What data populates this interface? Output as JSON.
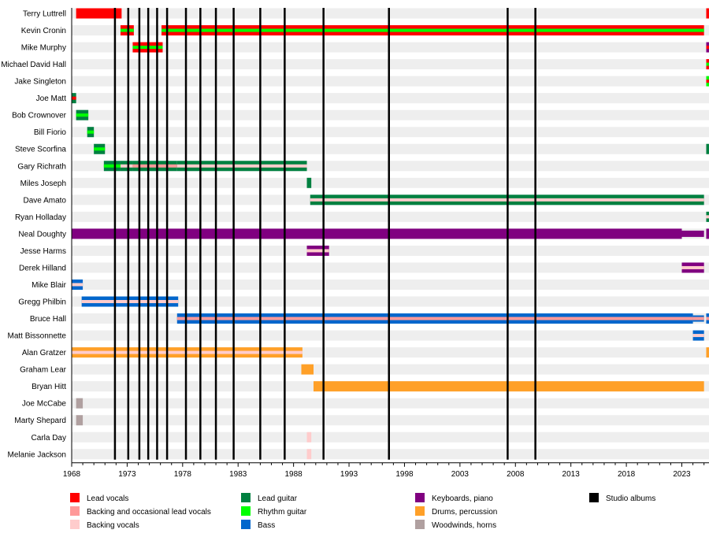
{
  "chart_data": {
    "type": "timeline",
    "xlim": [
      1968,
      2025.45
    ],
    "x_ticks": [
      1968,
      1973,
      1978,
      1983,
      1988,
      1993,
      1998,
      2003,
      2008,
      2013,
      2018,
      2023
    ],
    "grid": false,
    "legend_position": "bottom",
    "roles": {
      "lead_vocals": {
        "label": "Lead vocals",
        "color": "#ff0000"
      },
      "backing_lead_vocals": {
        "label": "Backing and occasional lead vocals",
        "color": "#ff9999"
      },
      "backing_vocals": {
        "label": "Backing vocals",
        "color": "#ffcccc"
      },
      "lead_guitar": {
        "label": "Lead guitar",
        "color": "#008040"
      },
      "rhythm_guitar": {
        "label": "Rhythm guitar",
        "color": "#00ff00"
      },
      "bass": {
        "label": "Bass",
        "color": "#0066cc"
      },
      "keyboards": {
        "label": "Keyboards, piano",
        "color": "#800080"
      },
      "drums": {
        "label": "Drums, percussion",
        "color": "#ffa028"
      },
      "woodwinds": {
        "label": "Woodwinds, horns",
        "color": "#b0a0a0"
      },
      "studio_albums": {
        "label": "Studio albums",
        "color": "#000000"
      }
    },
    "legend_order": [
      [
        "lead_vocals",
        "backing_lead_vocals",
        "backing_vocals"
      ],
      [
        "lead_guitar",
        "rhythm_guitar",
        "bass"
      ],
      [
        "keyboards",
        "drums",
        "woodwinds"
      ],
      [
        "studio_albums"
      ]
    ],
    "studio_albums": [
      1971.9,
      1973.1,
      1974.1,
      1974.9,
      1975.7,
      1976.6,
      1978.3,
      1979.6,
      1981.0,
      1982.6,
      1985.0,
      1987.2,
      1990.7,
      1996.6,
      2007.3,
      2009.8
    ],
    "members": [
      {
        "name": "Terry Luttrell",
        "periods": [
          {
            "start": 1968.4,
            "end": 1972.5,
            "role": "lead_vocals"
          },
          {
            "start": 2025.2,
            "end": 2025.45,
            "role": "lead_vocals"
          }
        ]
      },
      {
        "name": "Kevin Cronin",
        "periods": [
          {
            "start": 1972.4,
            "end": 1973.6,
            "role": "lead_vocals",
            "also": "rhythm_guitar"
          },
          {
            "start": 1976.1,
            "end": 2025.0,
            "role": "lead_vocals",
            "also": "rhythm_guitar"
          }
        ]
      },
      {
        "name": "Mike Murphy",
        "periods": [
          {
            "start": 1973.5,
            "end": 1976.2,
            "role": "lead_vocals",
            "also": "rhythm_guitar"
          },
          {
            "start": 2025.2,
            "end": 2025.45,
            "role": "keyboards",
            "also": "lead_vocals"
          }
        ]
      },
      {
        "name": "Michael David Hall",
        "periods": [
          {
            "start": 2025.2,
            "end": 2025.45,
            "role": "lead_vocals",
            "also": "rhythm_guitar"
          }
        ]
      },
      {
        "name": "Jake Singleton",
        "periods": [
          {
            "start": 2025.2,
            "end": 2025.45,
            "role": "rhythm_guitar",
            "also": "lead_vocals"
          }
        ]
      },
      {
        "name": "Joe Matt",
        "periods": [
          {
            "start": 1968.0,
            "end": 1968.4,
            "role": "lead_guitar",
            "also": "lead_vocals"
          }
        ]
      },
      {
        "name": "Bob Crownover",
        "periods": [
          {
            "start": 1968.4,
            "end": 1969.5,
            "role": "lead_guitar",
            "also": "rhythm_guitar"
          }
        ]
      },
      {
        "name": "Bill Fiorio",
        "periods": [
          {
            "start": 1969.4,
            "end": 1970.0,
            "role": "lead_guitar",
            "also": "rhythm_guitar"
          }
        ]
      },
      {
        "name": "Steve Scorfina",
        "periods": [
          {
            "start": 1970.0,
            "end": 1971.0,
            "role": "lead_guitar",
            "also": "rhythm_guitar"
          },
          {
            "start": 2025.2,
            "end": 2025.45,
            "role": "lead_guitar"
          }
        ]
      },
      {
        "name": "Gary Richrath",
        "periods": [
          {
            "start": 1970.9,
            "end": 1972.4,
            "role": "lead_guitar",
            "also": "rhythm_guitar"
          },
          {
            "start": 1972.4,
            "end": 1973.5,
            "role": "lead_guitar",
            "also": "backing_vocals"
          },
          {
            "start": 1973.5,
            "end": 1977.5,
            "role": "lead_guitar",
            "also": "backing_lead_vocals"
          },
          {
            "start": 1977.5,
            "end": 1989.2,
            "role": "lead_guitar",
            "also": "backing_vocals"
          }
        ]
      },
      {
        "name": "Miles Joseph",
        "periods": [
          {
            "start": 1989.2,
            "end": 1989.6,
            "role": "lead_guitar"
          }
        ]
      },
      {
        "name": "Dave Amato",
        "periods": [
          {
            "start": 1989.5,
            "end": 2025.0,
            "role": "lead_guitar",
            "also": "backing_vocals"
          }
        ]
      },
      {
        "name": "Ryan Holladay",
        "periods": [
          {
            "start": 2025.2,
            "end": 2025.45,
            "role": "lead_guitar",
            "also": "backing_vocals"
          }
        ]
      },
      {
        "name": "Neal Doughty",
        "periods": [
          {
            "start": 1968.0,
            "end": 2023.0,
            "role": "keyboards"
          },
          {
            "start": 2023.0,
            "end": 2025.0,
            "role": "keyboards",
            "minor": true
          },
          {
            "start": 2025.2,
            "end": 2025.45,
            "role": "keyboards"
          }
        ]
      },
      {
        "name": "Jesse Harms",
        "periods": [
          {
            "start": 1989.2,
            "end": 1991.2,
            "role": "keyboards",
            "also": "backing_vocals"
          }
        ]
      },
      {
        "name": "Derek Hilland",
        "periods": [
          {
            "start": 2023.0,
            "end": 2025.0,
            "role": "keyboards",
            "also": "backing_vocals"
          }
        ]
      },
      {
        "name": "Mike Blair",
        "periods": [
          {
            "start": 1968.0,
            "end": 1969.0,
            "role": "bass",
            "also": "backing_vocals"
          }
        ]
      },
      {
        "name": "Gregg Philbin",
        "periods": [
          {
            "start": 1968.9,
            "end": 1977.6,
            "role": "bass",
            "also": "backing_vocals"
          }
        ]
      },
      {
        "name": "Bruce Hall",
        "periods": [
          {
            "start": 1977.5,
            "end": 2024.0,
            "role": "bass",
            "also": "backing_lead_vocals"
          },
          {
            "start": 2024.0,
            "end": 2025.0,
            "role": "bass",
            "also": "backing_lead_vocals",
            "minor": true
          },
          {
            "start": 2025.2,
            "end": 2025.45,
            "role": "bass",
            "also": "backing_lead_vocals"
          }
        ]
      },
      {
        "name": "Matt Bissonnette",
        "periods": [
          {
            "start": 2024.0,
            "end": 2025.0,
            "role": "bass",
            "also": "backing_vocals"
          }
        ]
      },
      {
        "name": "Alan Gratzer",
        "periods": [
          {
            "start": 1968.0,
            "end": 1988.8,
            "role": "drums",
            "also": "backing_vocals"
          },
          {
            "start": 2025.2,
            "end": 2025.45,
            "role": "drums"
          }
        ]
      },
      {
        "name": "Graham Lear",
        "periods": [
          {
            "start": 1988.7,
            "end": 1989.8,
            "role": "drums"
          }
        ]
      },
      {
        "name": "Bryan Hitt",
        "periods": [
          {
            "start": 1989.8,
            "end": 2025.0,
            "role": "drums"
          }
        ]
      },
      {
        "name": "Joe McCabe",
        "periods": [
          {
            "start": 1968.4,
            "end": 1969.0,
            "role": "woodwinds"
          }
        ]
      },
      {
        "name": "Marty Shepard",
        "periods": [
          {
            "start": 1968.4,
            "end": 1969.0,
            "role": "woodwinds"
          }
        ]
      },
      {
        "name": "Carla Day",
        "periods": [
          {
            "start": 1989.2,
            "end": 1989.6,
            "role": "backing_vocals"
          }
        ]
      },
      {
        "name": "Melanie Jackson",
        "periods": [
          {
            "start": 1989.2,
            "end": 1989.6,
            "role": "backing_vocals"
          }
        ]
      }
    ]
  }
}
